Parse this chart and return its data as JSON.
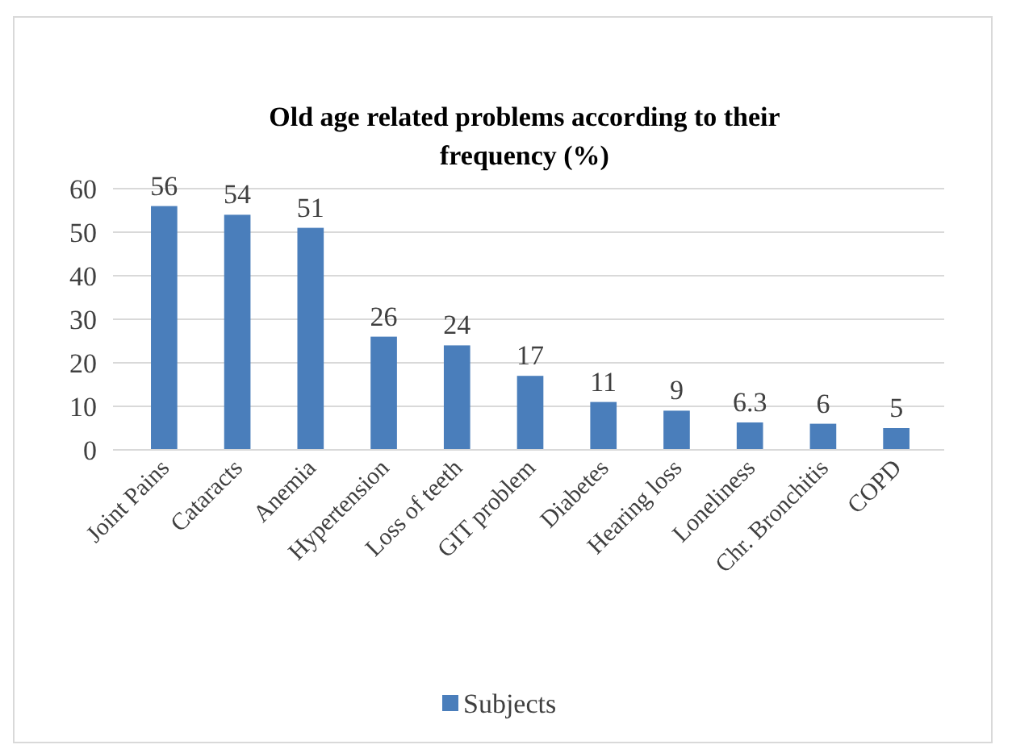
{
  "chart_data": {
    "type": "bar",
    "title": "Old age related problems according to their frequency (%)",
    "categories": [
      "Joint Pains",
      "Cataracts",
      "Anemia",
      "Hypertension",
      "Loss of teeth",
      "GIT problem",
      "Diabetes",
      "Hearing loss",
      "Loneliness",
      "Chr. Bronchitis",
      "COPD"
    ],
    "series": [
      {
        "name": "Subjects",
        "color": "#4a7ebb",
        "values": [
          56,
          54,
          51,
          26,
          24,
          17,
          11,
          9,
          6.3,
          6,
          5
        ]
      }
    ],
    "ylim": [
      0,
      60
    ],
    "yticks": [
      0,
      10,
      20,
      30,
      40,
      50,
      60
    ],
    "grid": "y",
    "legend": "bottom",
    "data_labels": true
  }
}
